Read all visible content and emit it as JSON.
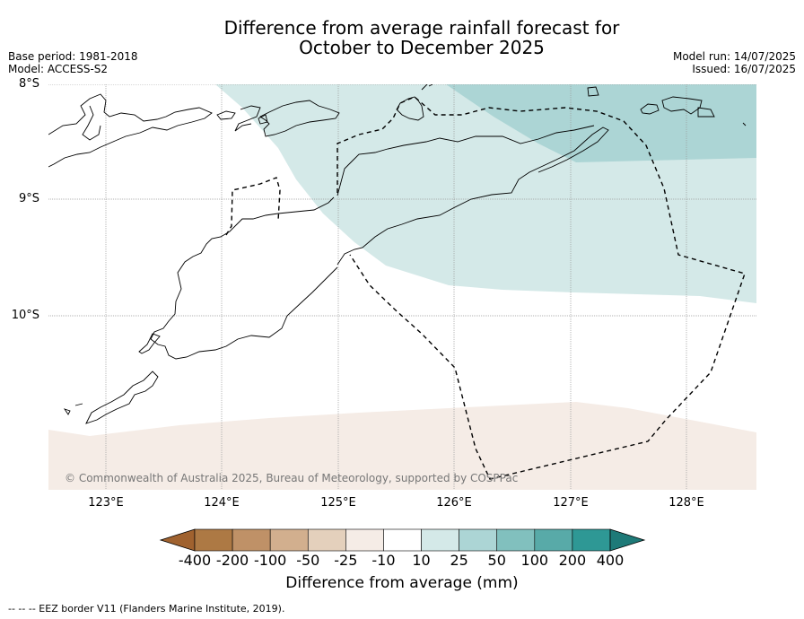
{
  "title_line1": "Difference from average rainfall forecast for",
  "title_line2": "October to December 2025",
  "base_period": "Base period: 1981-2018",
  "model": "Model: ACCESS-S2",
  "model_run": "Model run: 14/07/2025",
  "issued": "Issued: 16/07/2025",
  "lat_labels": [
    "8°S",
    "9°S",
    "10°S"
  ],
  "lon_labels": [
    "123°E",
    "124°E",
    "125°E",
    "126°E",
    "127°E",
    "128°E"
  ],
  "copyright": "© Commonwealth of Australia 2025, Bureau of Meteorology, supported by COSPPac",
  "colorbar": {
    "title": "Difference from average (mm)",
    "ticks": [
      "-400",
      "-200",
      "-100",
      "-50",
      "-25",
      "-10",
      "10",
      "25",
      "50",
      "100",
      "200",
      "400"
    ],
    "colors": [
      "#a0622f",
      "#ad7944",
      "#bf9167",
      "#d2af8e",
      "#e4d0bc",
      "#f5ece6",
      "#ffffff",
      "#d4e9e8",
      "#acd5d5",
      "#81c0be",
      "#58aaa8",
      "#2e9895",
      "#1e7a78"
    ]
  },
  "footer": "-- -- -- EEZ border V11 (Flanders Marine Institute, 2019)."
}
